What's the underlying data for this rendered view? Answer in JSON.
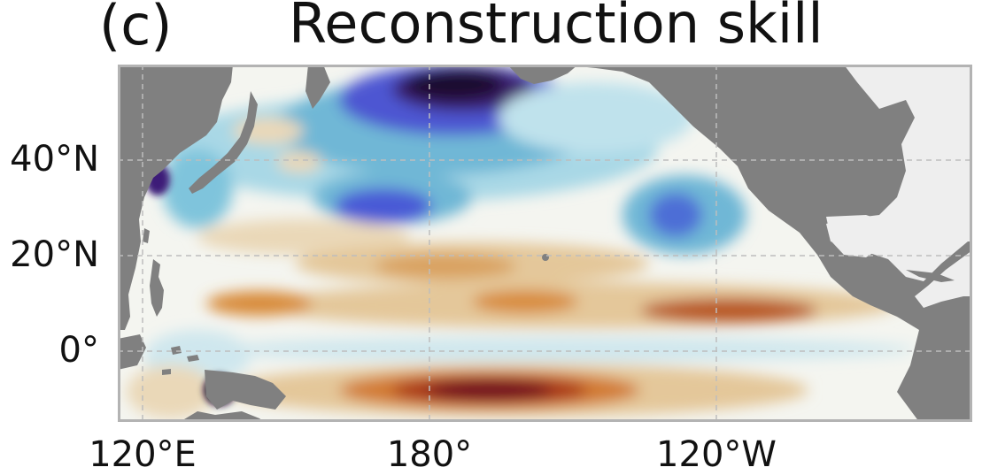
{
  "panel_label": "(c)",
  "title": "Reconstruction skill",
  "axes": {
    "lat_labels": [
      "40°N",
      "20°N",
      "0°"
    ],
    "lon_labels": [
      "120°E",
      "180°",
      "120°W"
    ]
  },
  "colors": {
    "land": "#808080",
    "land_light": "#eeeeee",
    "ocean_neutral": "#f4f5f0",
    "negative_dark": "#2a0a35",
    "negative_mid": "#4a55d6",
    "negative_light": "#7fc4dc",
    "positive_light": "#e9d6b4",
    "positive_mid": "#d58b3c",
    "positive_dark": "#7a1420",
    "frame": "#b3b3b3",
    "grid": "#bdbdbd"
  }
}
